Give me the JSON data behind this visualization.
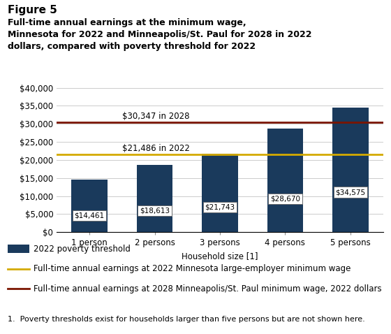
{
  "categories": [
    "1 person",
    "2 persons",
    "3 persons",
    "4 persons",
    "5 persons"
  ],
  "values": [
    14461,
    18613,
    21743,
    28670,
    34575
  ],
  "bar_color": "#1a3a5c",
  "bar_labels": [
    "$14,461",
    "$18,613",
    "$21,743",
    "$28,670",
    "$34,575"
  ],
  "hline_yellow": 21486,
  "hline_red": 30347,
  "yellow_color": "#d4aa00",
  "red_color": "#7b1500",
  "yellow_annotation": "$21,486 in 2022",
  "red_annotation": "$30,347 in 2028",
  "yellow_label": "Full-time annual earnings at 2022 Minnesota large-employer minimum wage",
  "red_label": "Full-time annual earnings at 2028 Minneapolis/St. Paul minimum wage, 2022 dollars",
  "xlabel": "Household size [1]",
  "ylim": [
    0,
    42000
  ],
  "yticks": [
    0,
    5000,
    10000,
    15000,
    20000,
    25000,
    30000,
    35000,
    40000
  ],
  "ytick_labels": [
    "$0",
    "$5,000",
    "$10,000",
    "$15,000",
    "$20,000",
    "$25,000",
    "$30,000",
    "$35,000",
    "$40,000"
  ],
  "bar_legend_label": "2022 poverty threshold",
  "figure_label": "Figure 5",
  "title_line1": "Full-time annual earnings at the minimum wage,",
  "title_line2": "Minnesota for 2022 and Minneapolis/St. Paul for 2028 in 2022",
  "title_line3": "dollars, compared with poverty threshold for 2022",
  "footnote": "1.  Poverty thresholds exist for households larger than five persons but are not shown here.",
  "background_color": "#ffffff"
}
